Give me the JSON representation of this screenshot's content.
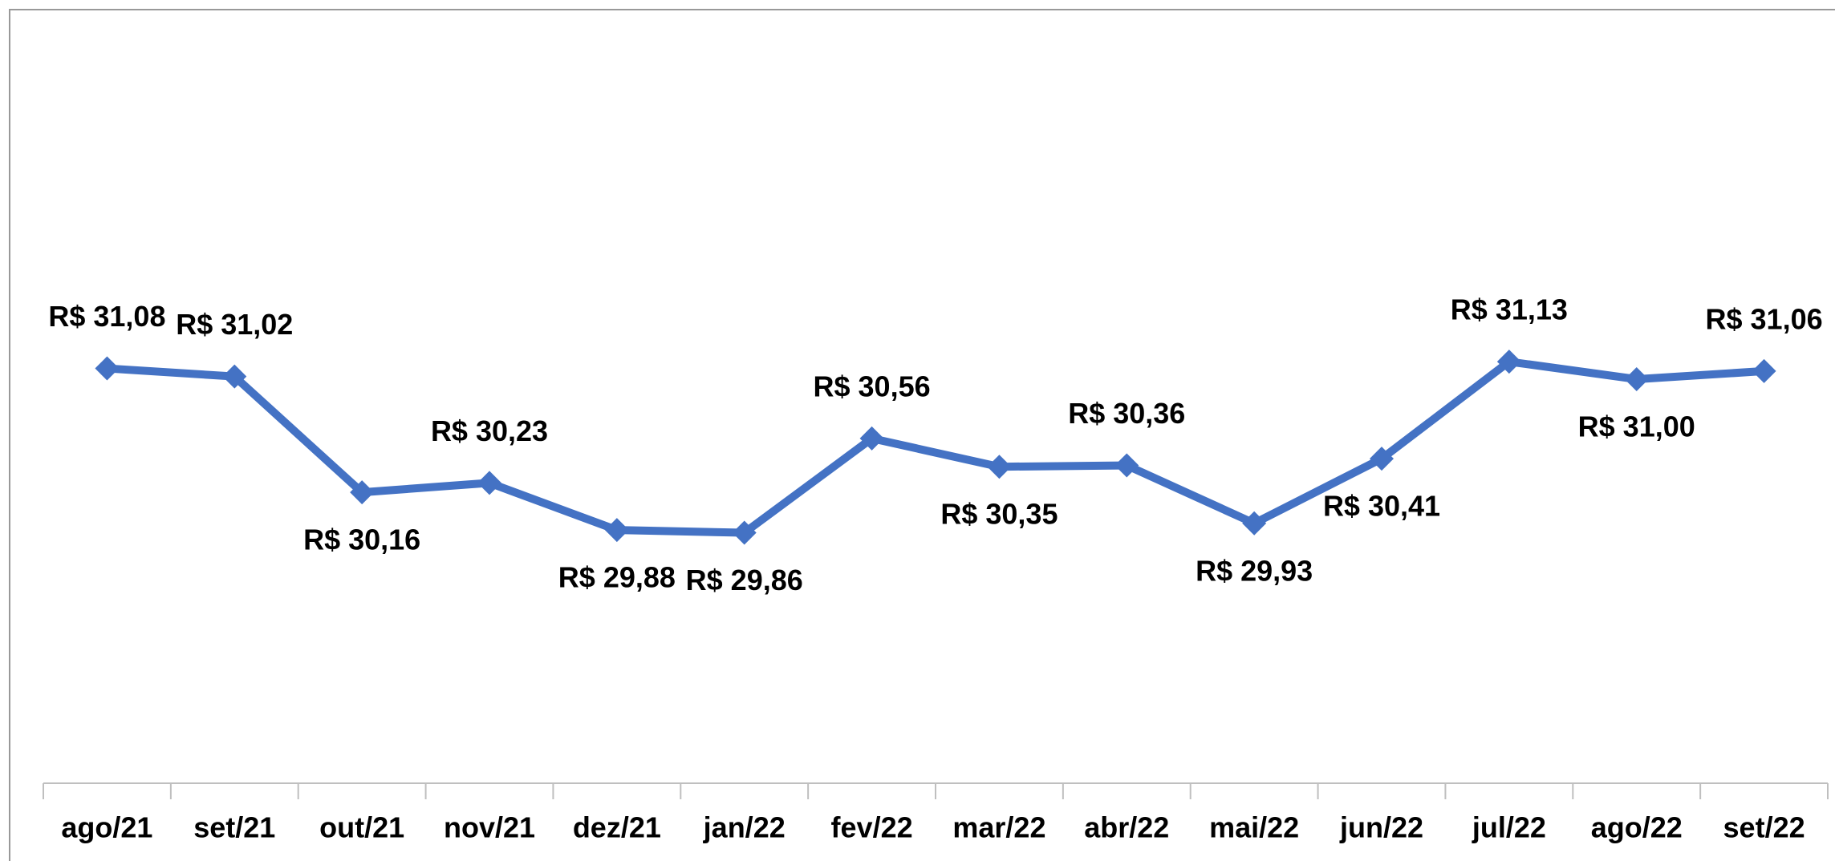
{
  "chart_data": {
    "type": "line",
    "categories": [
      "ago/21",
      "set/21",
      "out/21",
      "nov/21",
      "dez/21",
      "jan/22",
      "fev/22",
      "mar/22",
      "abr/22",
      "mai/22",
      "jun/22",
      "jul/22",
      "ago/22",
      "set/22"
    ],
    "series": [
      {
        "color": "#4472c4",
        "values": [
          31.08,
          31.02,
          30.16,
          30.23,
          29.88,
          29.86,
          30.56,
          30.35,
          30.36,
          29.93,
          30.41,
          31.13,
          31.0,
          31.06
        ],
        "value_labels": [
          "R$ 31,08",
          "R$ 31,02",
          "R$ 30,16",
          "R$ 30,23",
          "R$ 29,88",
          "R$ 29,86",
          "R$ 30,56",
          "R$ 30,35",
          "R$ 30,36",
          "R$ 29,93",
          "R$ 30,41",
          "R$ 31,13",
          "R$ 31,00",
          "R$ 31,06"
        ]
      }
    ],
    "ylim": [
      28,
      33.5
    ]
  }
}
